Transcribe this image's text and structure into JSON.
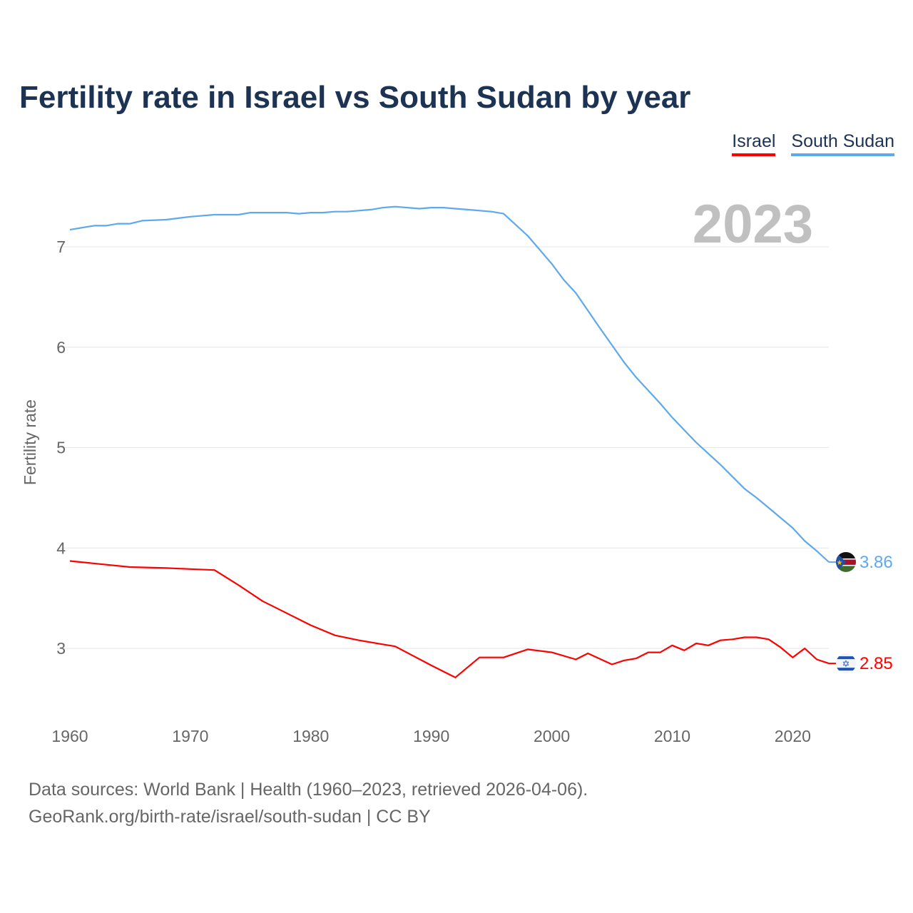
{
  "chart_data": {
    "type": "line",
    "title": "Fertility rate in Israel vs South Sudan by year",
    "xlabel": "",
    "ylabel": "Fertility rate",
    "xlim": [
      1960,
      2023
    ],
    "ylim": [
      2.5,
      7.5
    ],
    "x_ticks": [
      "1960",
      "1970",
      "1980",
      "1990",
      "2000",
      "2010",
      "2020"
    ],
    "y_ticks": [
      "3",
      "4",
      "5",
      "6",
      "7"
    ],
    "grid": true,
    "legend_placement": "top-right",
    "year_annotation": "2023",
    "series": [
      {
        "name": "Israel",
        "color": "#ff0000",
        "end_label": "2.85",
        "flag": "israel-flag",
        "points": [
          [
            1960,
            3.87
          ],
          [
            1965,
            3.81
          ],
          [
            1968,
            3.8
          ],
          [
            1970,
            3.79
          ],
          [
            1972,
            3.78
          ],
          [
            1974,
            3.63
          ],
          [
            1976,
            3.47
          ],
          [
            1978,
            3.35
          ],
          [
            1980,
            3.23
          ],
          [
            1982,
            3.13
          ],
          [
            1984,
            3.08
          ],
          [
            1986,
            3.04
          ],
          [
            1987,
            3.02
          ],
          [
            1990,
            2.83
          ],
          [
            1992,
            2.71
          ],
          [
            1994,
            2.91
          ],
          [
            1996,
            2.91
          ],
          [
            1998,
            2.99
          ],
          [
            2000,
            2.96
          ],
          [
            2002,
            2.89
          ],
          [
            2003,
            2.95
          ],
          [
            2005,
            2.84
          ],
          [
            2006,
            2.88
          ],
          [
            2007,
            2.9
          ],
          [
            2008,
            2.96
          ],
          [
            2009,
            2.96
          ],
          [
            2010,
            3.03
          ],
          [
            2011,
            2.98
          ],
          [
            2012,
            3.05
          ],
          [
            2013,
            3.03
          ],
          [
            2014,
            3.08
          ],
          [
            2015,
            3.09
          ],
          [
            2016,
            3.11
          ],
          [
            2017,
            3.11
          ],
          [
            2018,
            3.09
          ],
          [
            2019,
            3.01
          ],
          [
            2020,
            2.91
          ],
          [
            2021,
            3.0
          ],
          [
            2022,
            2.89
          ],
          [
            2023,
            2.85
          ]
        ]
      },
      {
        "name": "South Sudan",
        "color": "#5ea8ec",
        "end_label": "3.86",
        "flag": "south-sudan-flag",
        "points": [
          [
            1960,
            7.17
          ],
          [
            1962,
            7.21
          ],
          [
            1963,
            7.21
          ],
          [
            1964,
            7.23
          ],
          [
            1965,
            7.23
          ],
          [
            1966,
            7.26
          ],
          [
            1968,
            7.27
          ],
          [
            1970,
            7.3
          ],
          [
            1972,
            7.32
          ],
          [
            1974,
            7.32
          ],
          [
            1975,
            7.34
          ],
          [
            1978,
            7.34
          ],
          [
            1979,
            7.33
          ],
          [
            1980,
            7.34
          ],
          [
            1981,
            7.34
          ],
          [
            1982,
            7.35
          ],
          [
            1983,
            7.35
          ],
          [
            1985,
            7.37
          ],
          [
            1986,
            7.39
          ],
          [
            1987,
            7.4
          ],
          [
            1989,
            7.38
          ],
          [
            1990,
            7.39
          ],
          [
            1991,
            7.39
          ],
          [
            1993,
            7.37
          ],
          [
            1995,
            7.35
          ],
          [
            1996,
            7.33
          ],
          [
            1998,
            7.11
          ],
          [
            2000,
            6.83
          ],
          [
            2001,
            6.67
          ],
          [
            2002,
            6.54
          ],
          [
            2004,
            6.19
          ],
          [
            2006,
            5.85
          ],
          [
            2007,
            5.7
          ],
          [
            2008,
            5.57
          ],
          [
            2009,
            5.44
          ],
          [
            2010,
            5.3
          ],
          [
            2012,
            5.05
          ],
          [
            2014,
            4.83
          ],
          [
            2016,
            4.59
          ],
          [
            2017,
            4.5
          ],
          [
            2018,
            4.4
          ],
          [
            2020,
            4.2
          ],
          [
            2021,
            4.07
          ],
          [
            2022,
            3.97
          ],
          [
            2023,
            3.86
          ]
        ]
      }
    ]
  },
  "footer": {
    "line1": "Data sources: World Bank | Health (1960–2023, retrieved 2026-04-06).",
    "line2": "GeoRank.org/birth-rate/israel/south-sudan | CC BY"
  }
}
